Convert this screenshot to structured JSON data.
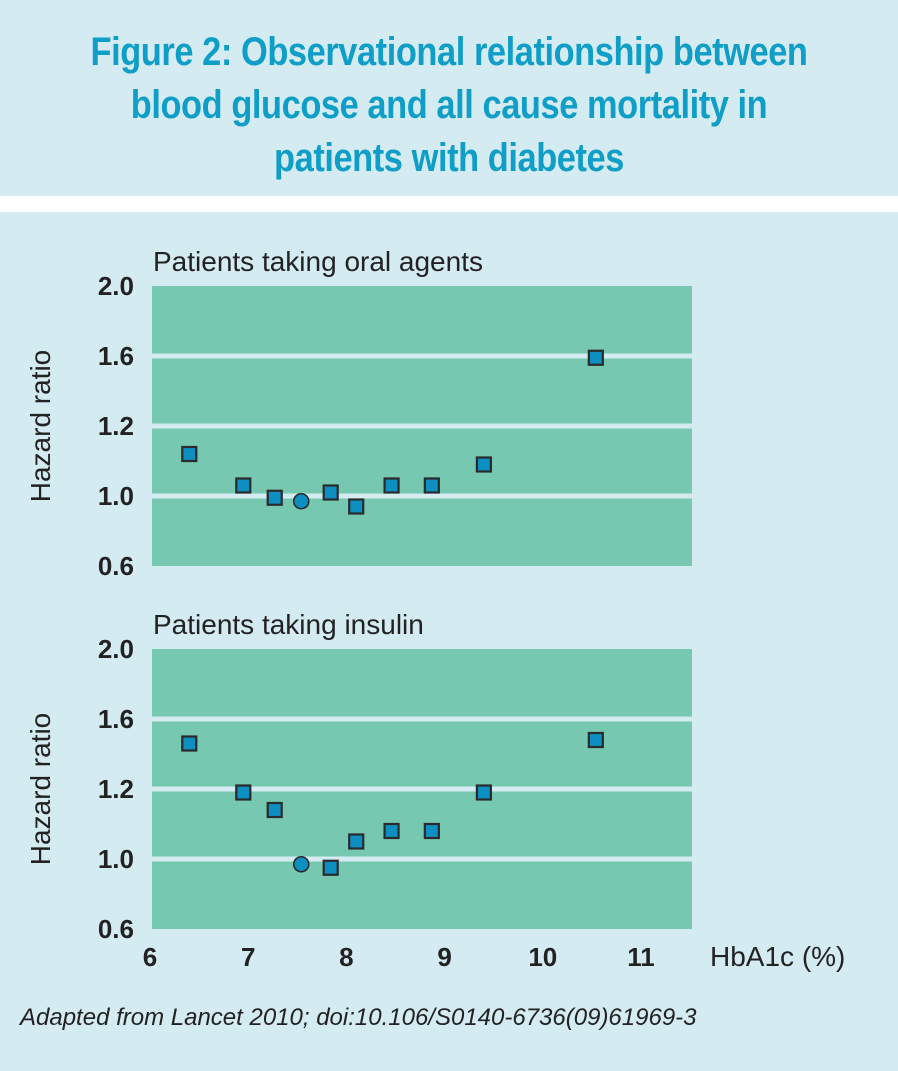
{
  "title": "Figure 2: Observational relationship between blood glucose and all cause mortality in patients with diabetes",
  "title_lines": [
    "Figure 2: Observational relationship between",
    "blood glucose and all cause mortality in",
    "patients with diabetes"
  ],
  "source": "Adapted from Lancet 2010; doi:10.106/S0140-6736(09)61969-3",
  "colors": {
    "title": "#0f9ec7",
    "plot_bg": "#76c8b0",
    "gridline": "#d4ebf1",
    "marker_fill": "#0e8fc2",
    "marker_stroke": "#2a2a2a",
    "page_bg": "#d4ebf1"
  },
  "chart_data": [
    {
      "type": "scatter",
      "title": "Patients taking oral agents",
      "xlabel": "HbA1c (%)",
      "ylabel": "Hazard ratio",
      "xlim": [
        6,
        11.5
      ],
      "x_ticks": [
        "6",
        "7",
        "8",
        "9",
        "10",
        "11"
      ],
      "y_ticks": [
        "0.6",
        "1.0",
        "1.2",
        "1.6",
        "2.0"
      ],
      "y_tick_values": [
        0.6,
        1.0,
        1.2,
        1.6,
        2.0
      ],
      "ylim": [
        0.6,
        2.0
      ],
      "grid": true,
      "points": [
        {
          "x": 6.4,
          "y": 1.12,
          "marker": "square"
        },
        {
          "x": 6.95,
          "y": 1.03,
          "marker": "square"
        },
        {
          "x": 7.27,
          "y": 0.99,
          "marker": "square"
        },
        {
          "x": 7.54,
          "y": 0.97,
          "marker": "circle",
          "note": "reference"
        },
        {
          "x": 7.84,
          "y": 1.01,
          "marker": "square"
        },
        {
          "x": 8.1,
          "y": 0.94,
          "marker": "square"
        },
        {
          "x": 8.46,
          "y": 1.03,
          "marker": "square"
        },
        {
          "x": 8.87,
          "y": 1.03,
          "marker": "square"
        },
        {
          "x": 9.4,
          "y": 1.09,
          "marker": "square"
        },
        {
          "x": 10.54,
          "y": 1.59,
          "marker": "square"
        }
      ]
    },
    {
      "type": "scatter",
      "title": "Patients taking insulin",
      "xlabel": "HbA1c (%)",
      "ylabel": "Hazard ratio",
      "xlim": [
        6,
        11.5
      ],
      "x_ticks": [
        "6",
        "7",
        "8",
        "9",
        "10",
        "11"
      ],
      "y_ticks": [
        "0.6",
        "1.0",
        "1.2",
        "1.6",
        "2.0"
      ],
      "y_tick_values": [
        0.6,
        1.0,
        1.2,
        1.6,
        2.0
      ],
      "ylim": [
        0.6,
        2.0
      ],
      "grid": true,
      "points": [
        {
          "x": 6.4,
          "y": 1.46,
          "marker": "square"
        },
        {
          "x": 6.95,
          "y": 1.19,
          "marker": "square"
        },
        {
          "x": 7.27,
          "y": 1.14,
          "marker": "square"
        },
        {
          "x": 7.54,
          "y": 0.97,
          "marker": "circle",
          "note": "reference"
        },
        {
          "x": 7.84,
          "y": 0.95,
          "marker": "square"
        },
        {
          "x": 8.1,
          "y": 1.05,
          "marker": "square"
        },
        {
          "x": 8.46,
          "y": 1.08,
          "marker": "square"
        },
        {
          "x": 8.87,
          "y": 1.08,
          "marker": "square"
        },
        {
          "x": 9.4,
          "y": 1.19,
          "marker": "square"
        },
        {
          "x": 10.54,
          "y": 1.48,
          "marker": "square"
        }
      ]
    }
  ]
}
